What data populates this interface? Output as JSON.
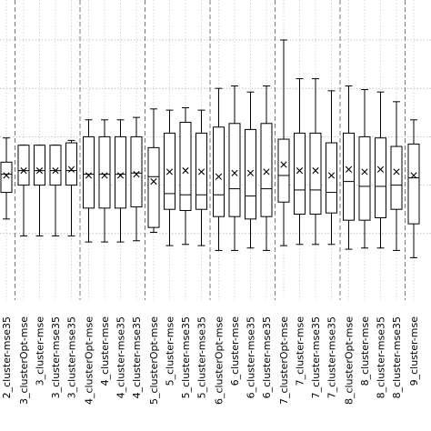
{
  "chart_data": {
    "type": "box",
    "title": "",
    "xlabel": "",
    "ylabel": "",
    "ylim": [
      0,
      100
    ],
    "grid": true,
    "legend": "none",
    "mean_marker": "x",
    "categories": [
      "2_cluster-mse35",
      "3_clusterOpt-mse",
      "3_cluster-mse",
      "3_cluster-mse35",
      "3_cluster-mse35",
      "4_clusterOpt-mse",
      "4_cluster-mse",
      "4_cluster-mse35",
      "4_cluster-mse35",
      "5_clusterOpt-mse",
      "5_cluster-mse",
      "5_cluster-mse35",
      "5_cluster-mse35",
      "6_clusterOpt-mse",
      "6_cluster-mse",
      "6_cluster-mse35",
      "6_cluster-mse35",
      "7_clusterOpt-mse",
      "7_cluster-mse",
      "7_cluster-mse35",
      "7_cluster-mse35",
      "8_clusterOpt-mse",
      "8_cluster-mse",
      "8_cluster-mse35",
      "8_cluster-mse35",
      "9_cluster-mse"
    ],
    "groups": [
      {
        "name": "2_cluster",
        "boxes": [
          0
        ]
      },
      {
        "name": "3_cluster",
        "boxes": [
          1,
          2,
          3,
          4
        ]
      },
      {
        "name": "4_cluster",
        "boxes": [
          5,
          6,
          7,
          8
        ]
      },
      {
        "name": "5_cluster",
        "boxes": [
          9,
          10,
          11,
          12
        ]
      },
      {
        "name": "6_cluster",
        "boxes": [
          13,
          14,
          15,
          16
        ]
      },
      {
        "name": "7_cluster",
        "boxes": [
          17,
          18,
          19,
          20
        ]
      },
      {
        "name": "8_cluster",
        "boxes": [
          21,
          22,
          23,
          24
        ]
      },
      {
        "name": "9_cluster",
        "boxes": [
          25
        ]
      }
    ],
    "boxes": [
      {
        "whislo": 26.0,
        "q1": 37.0,
        "med": 44.5,
        "mean": 44.0,
        "q3": 49.5,
        "whishi": 59.5
      },
      {
        "whislo": 19.0,
        "q1": 40.0,
        "med": 46.0,
        "mean": 46.0,
        "q3": 56.5,
        "whishi": 56.5
      },
      {
        "whislo": 19.0,
        "q1": 40.0,
        "med": 46.0,
        "mean": 46.0,
        "q3": 56.5,
        "whishi": 56.5
      },
      {
        "whislo": 19.0,
        "q1": 40.0,
        "med": 46.0,
        "mean": 46.0,
        "q3": 56.5,
        "whishi": 56.5
      },
      {
        "whislo": 19.0,
        "q1": 40.0,
        "med": 46.0,
        "mean": 46.5,
        "q3": 57.5,
        "whishi": 58.5
      },
      {
        "whislo": 16.5,
        "q1": 30.5,
        "med": 44.5,
        "mean": 44.0,
        "q3": 60.0,
        "whishi": 67.0
      },
      {
        "whislo": 16.5,
        "q1": 30.5,
        "med": 44.5,
        "mean": 44.0,
        "q3": 60.0,
        "whishi": 67.0
      },
      {
        "whislo": 16.5,
        "q1": 30.5,
        "med": 44.5,
        "mean": 44.0,
        "q3": 60.0,
        "whishi": 67.0
      },
      {
        "whislo": 17.0,
        "q1": 31.0,
        "med": 45.0,
        "mean": 44.5,
        "q3": 60.0,
        "whishi": 68.0
      },
      {
        "whislo": 20.5,
        "q1": 22.5,
        "med": 43.5,
        "mean": 41.5,
        "q3": 55.5,
        "whishi": 71.5
      },
      {
        "whislo": 15.0,
        "q1": 30.0,
        "med": 36.5,
        "mean": 45.5,
        "q3": 61.5,
        "whishi": 71.0
      },
      {
        "whislo": 15.5,
        "q1": 29.5,
        "med": 36.0,
        "mean": 46.0,
        "q3": 66.0,
        "whishi": 72.0
      },
      {
        "whislo": 15.0,
        "q1": 30.0,
        "med": 36.0,
        "mean": 45.5,
        "q3": 61.5,
        "whishi": 71.0
      },
      {
        "whislo": 13.0,
        "q1": 27.0,
        "med": 36.0,
        "mean": 43.5,
        "q3": 64.0,
        "whishi": 80.0
      },
      {
        "whislo": 13.0,
        "q1": 27.0,
        "med": 38.5,
        "mean": 45.0,
        "q3": 65.5,
        "whishi": 81.0
      },
      {
        "whislo": 14.0,
        "q1": 26.0,
        "med": 35.5,
        "mean": 45.0,
        "q3": 63.0,
        "whishi": 78.5
      },
      {
        "whislo": 13.0,
        "q1": 27.0,
        "med": 38.5,
        "mean": 45.5,
        "q3": 65.5,
        "whishi": 81.0
      },
      {
        "whislo": 15.0,
        "q1": 33.0,
        "med": 44.0,
        "mean": 48.5,
        "q3": 59.0,
        "whishi": 100.0
      },
      {
        "whislo": 15.5,
        "q1": 28.0,
        "med": 38.0,
        "mean": 46.0,
        "q3": 61.5,
        "whishi": 84.0
      },
      {
        "whislo": 15.5,
        "q1": 28.0,
        "med": 38.0,
        "mean": 46.0,
        "q3": 61.5,
        "whishi": 84.0
      },
      {
        "whislo": 15.5,
        "q1": 28.5,
        "med": 37.0,
        "mean": 44.0,
        "q3": 57.5,
        "whishi": 79.0
      },
      {
        "whislo": 13.5,
        "q1": 25.5,
        "med": 41.5,
        "mean": 46.5,
        "q3": 61.5,
        "whishi": 81.0
      },
      {
        "whislo": 14.0,
        "q1": 25.5,
        "med": 39.5,
        "mean": 45.5,
        "q3": 60.0,
        "whishi": 79.5
      },
      {
        "whislo": 14.0,
        "q1": 26.5,
        "med": 39.5,
        "mean": 46.5,
        "q3": 59.5,
        "whishi": 78.5
      },
      {
        "whislo": 13.0,
        "q1": 30.0,
        "med": 40.0,
        "mean": 45.5,
        "q3": 56.0,
        "whishi": 74.5
      },
      {
        "whislo": 10.0,
        "q1": 24.0,
        "med": 43.0,
        "mean": 44.0,
        "q3": 57.0,
        "whishi": 67.0
      }
    ]
  }
}
